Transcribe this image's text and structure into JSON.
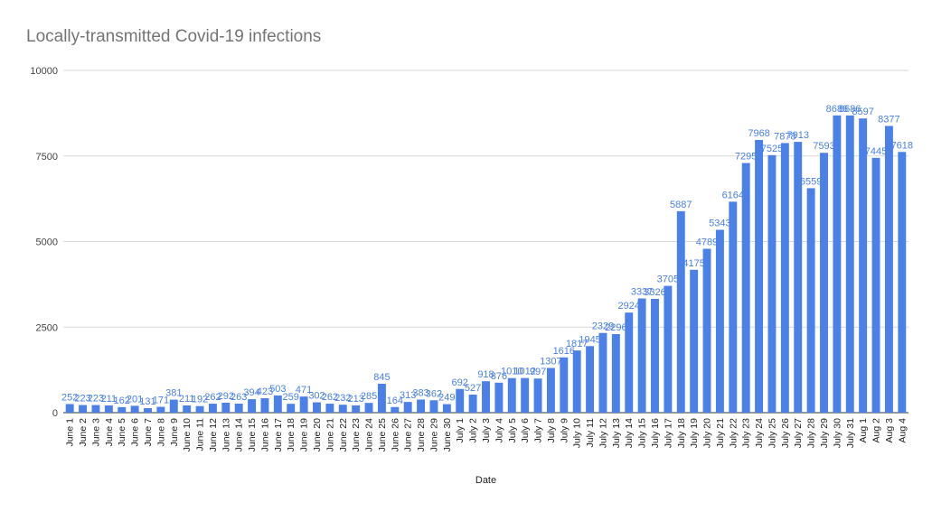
{
  "chart_data": {
    "type": "bar",
    "title": "Locally-transmitted Covid-19 infections",
    "xlabel": "Date",
    "ylabel": "",
    "ylim": [
      0,
      10000
    ],
    "yticks": [
      0,
      2500,
      5000,
      7500,
      10000
    ],
    "yticklabels": [
      "0",
      "2500",
      "5000",
      "7500",
      "10000"
    ],
    "grid": true,
    "legend": "none",
    "bar_color": "#4a80e8",
    "categories": [
      "June 1",
      "June 2",
      "June 3",
      "June 4",
      "June 5",
      "June 6",
      "June 7",
      "June 8",
      "June 9",
      "June 10",
      "June 11",
      "June 12",
      "June 13",
      "June 14",
      "June 15",
      "June 16",
      "June 17",
      "June 18",
      "June 19",
      "June 20",
      "June 21",
      "June 22",
      "June 23",
      "June 24",
      "June 25",
      "June 26",
      "June 27",
      "June 28",
      "June 29",
      "June 30",
      "July 1",
      "July 2",
      "July 3",
      "July 4",
      "July 5",
      "July 6",
      "July 7",
      "July 8",
      "July 9",
      "July 10",
      "July 11",
      "July 12",
      "July 13",
      "July 14",
      "July 15",
      "July 16",
      "July 17",
      "July 18",
      "July 19",
      "July 20",
      "July 21",
      "July 22",
      "July 23",
      "July 24",
      "July 25",
      "July 26",
      "July 27",
      "July 28",
      "July 29",
      "July 30",
      "July 31",
      "Aug 1",
      "Aug 2",
      "Aug 3",
      "Aug 4"
    ],
    "values": [
      252,
      223,
      223,
      211,
      162,
      201,
      131,
      171,
      381,
      211,
      192,
      262,
      292,
      263,
      394,
      423,
      503,
      259,
      471,
      302,
      262,
      232,
      213,
      285,
      845,
      164,
      313,
      383,
      362,
      249,
      692,
      527,
      918,
      876,
      1010,
      1012,
      997,
      1307,
      1616,
      1817,
      1945,
      2329,
      2296,
      2924,
      3337,
      3326,
      3705,
      5887,
      4175,
      4789,
      5343,
      6164,
      7295,
      7968,
      7525,
      7878,
      7913,
      6559,
      7593,
      8686,
      8686,
      8597,
      7445,
      8377,
      7618
    ]
  }
}
